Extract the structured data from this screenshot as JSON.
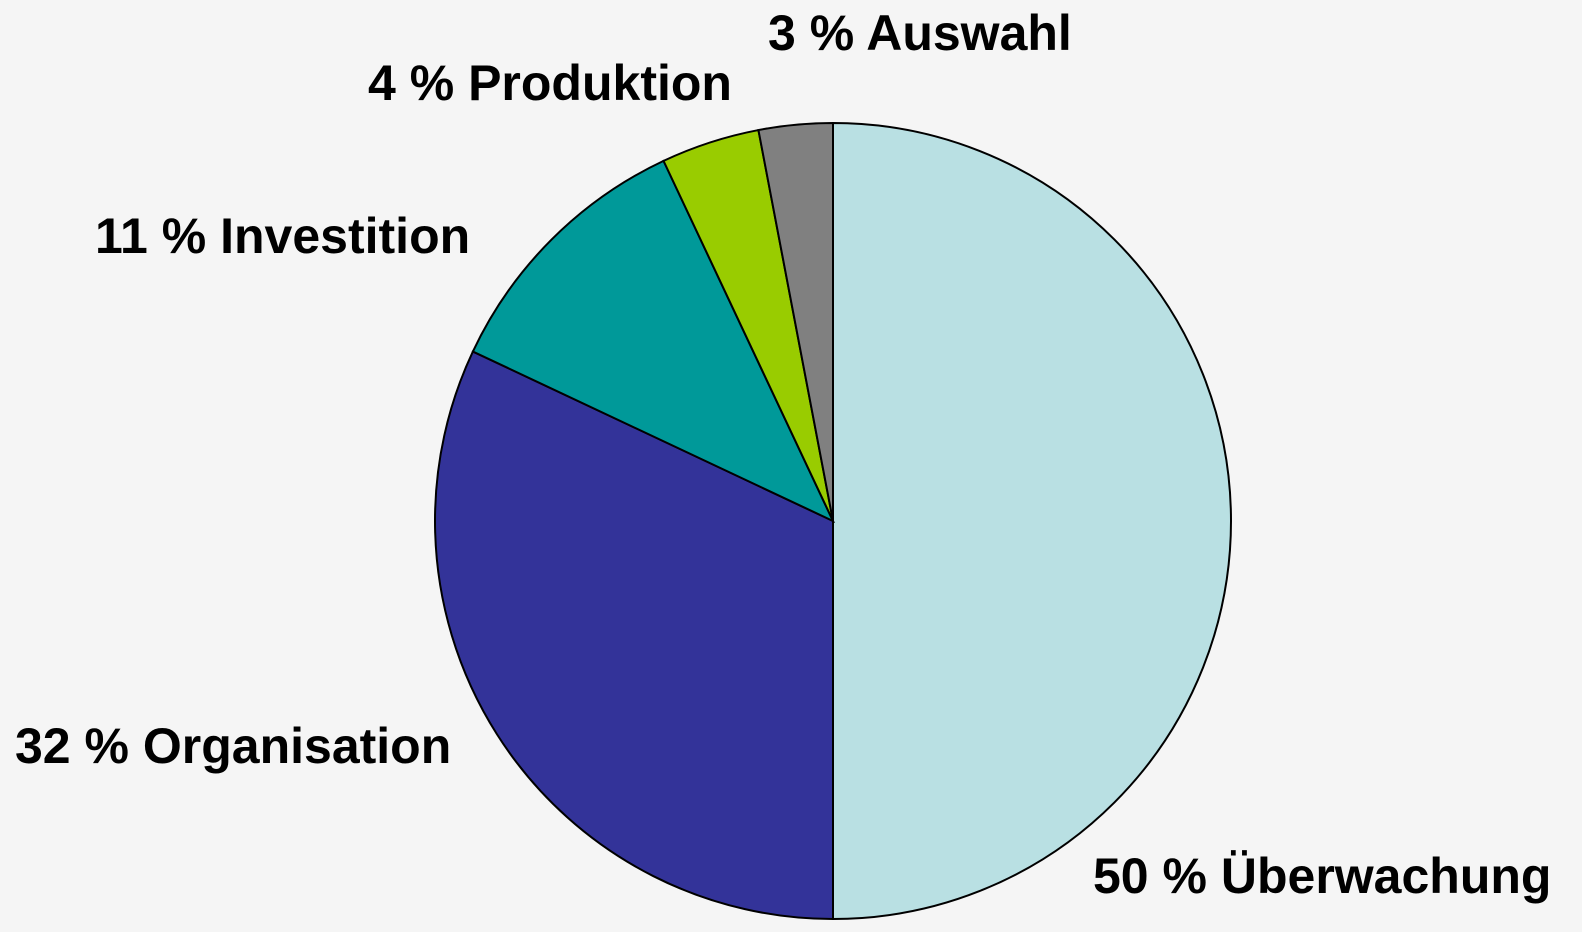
{
  "chart_data": {
    "type": "pie",
    "categories": [
      "Überwachung",
      "Organisation",
      "Investition",
      "Produktion",
      "Auswahl"
    ],
    "values": [
      50,
      32,
      11,
      4,
      3
    ],
    "value_labels": [
      "50 %",
      "32 %",
      "11 %",
      "4 %",
      "3 %"
    ],
    "colors": [
      "#b9e0e3",
      "#333399",
      "#009999",
      "#99cc00",
      "#808080"
    ]
  }
}
